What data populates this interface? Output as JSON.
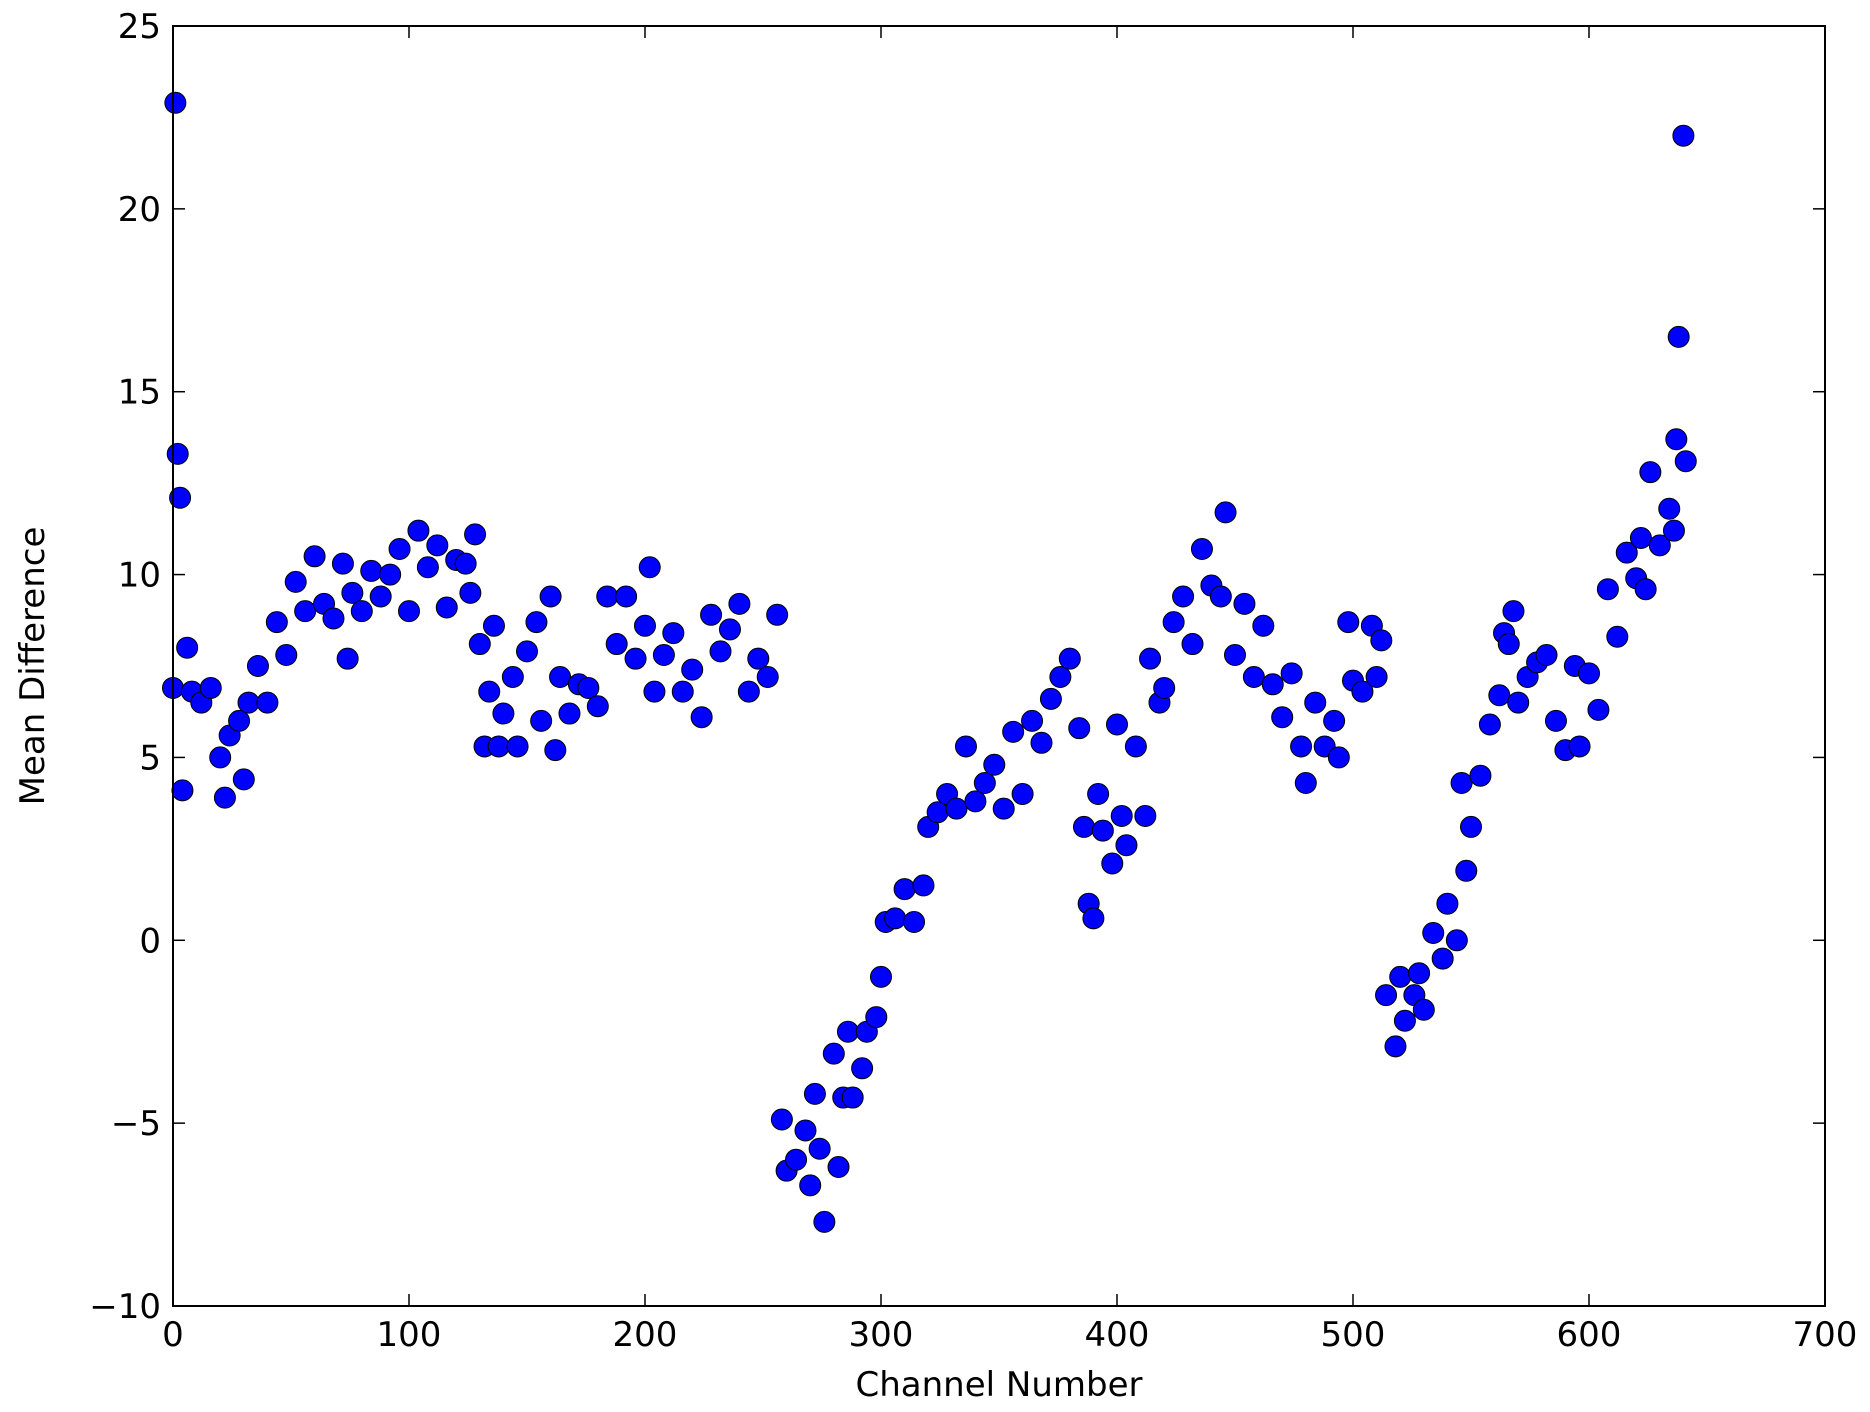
{
  "chart_data": {
    "type": "scatter",
    "x_label": "Channel Number",
    "y_label": "Mean Difference",
    "color": "#0000ff",
    "edge_color": "#000000",
    "xlim": [
      0,
      700
    ],
    "xticks": [
      0,
      100,
      200,
      300,
      400,
      500,
      600,
      700
    ],
    "ylim": [
      -10,
      25
    ],
    "yticks": [
      {
        "value": -10,
        "label": "−10"
      },
      {
        "value": -5,
        "label": "−5"
      },
      0,
      5,
      10,
      15,
      20,
      25
    ],
    "grid": false,
    "x": [
      0,
      1,
      2,
      3,
      4,
      6,
      8,
      12,
      16,
      20,
      22,
      24,
      28,
      30,
      32,
      36,
      40,
      44,
      48,
      52,
      56,
      60,
      64,
      68,
      72,
      74,
      76,
      80,
      84,
      88,
      92,
      96,
      100,
      104,
      108,
      112,
      116,
      120,
      124,
      126,
      128,
      130,
      132,
      134,
      136,
      138,
      140,
      144,
      146,
      150,
      154,
      156,
      160,
      162,
      164,
      168,
      172,
      176,
      180,
      184,
      188,
      192,
      196,
      200,
      202,
      204,
      208,
      212,
      216,
      220,
      224,
      228,
      232,
      236,
      240,
      244,
      248,
      252,
      256,
      258,
      260,
      264,
      268,
      270,
      272,
      274,
      276,
      280,
      282,
      284,
      286,
      288,
      292,
      294,
      298,
      300,
      302,
      306,
      310,
      314,
      318,
      320,
      324,
      328,
      332,
      336,
      340,
      344,
      348,
      352,
      356,
      360,
      364,
      368,
      372,
      376,
      380,
      384,
      386,
      388,
      390,
      392,
      394,
      398,
      400,
      402,
      404,
      408,
      412,
      414,
      418,
      420,
      424,
      428,
      432,
      436,
      440,
      444,
      446,
      450,
      454,
      458,
      462,
      466,
      470,
      474,
      478,
      480,
      484,
      488,
      492,
      494,
      498,
      500,
      504,
      508,
      510,
      512,
      514,
      518,
      520,
      522,
      526,
      528,
      530,
      534,
      538,
      540,
      544,
      546,
      548,
      550,
      554,
      558,
      562,
      564,
      566,
      568,
      570,
      574,
      578,
      582,
      586,
      590,
      594,
      596,
      600,
      604,
      608,
      612,
      616,
      620,
      622,
      624,
      626,
      630,
      634,
      636,
      637,
      638,
      640,
      641
    ],
    "y": [
      6.9,
      22.9,
      13.3,
      12.1,
      4.1,
      8.0,
      6.8,
      6.5,
      6.9,
      5.0,
      3.9,
      5.6,
      6.0,
      4.4,
      6.5,
      7.5,
      6.5,
      8.7,
      7.8,
      9.8,
      9.0,
      10.5,
      9.2,
      8.8,
      10.3,
      7.7,
      9.5,
      9.0,
      10.1,
      9.4,
      10.0,
      10.7,
      9.0,
      11.2,
      10.2,
      10.8,
      9.1,
      10.4,
      10.3,
      9.5,
      11.1,
      8.1,
      5.3,
      6.8,
      8.6,
      5.3,
      6.2,
      7.2,
      5.3,
      7.9,
      8.7,
      6.0,
      9.4,
      5.2,
      7.2,
      6.2,
      7.0,
      6.9,
      6.4,
      9.4,
      8.1,
      9.4,
      7.7,
      8.6,
      10.2,
      6.8,
      7.8,
      8.4,
      6.8,
      7.4,
      6.1,
      8.9,
      7.9,
      8.5,
      9.2,
      6.8,
      7.7,
      7.2,
      8.9,
      -4.9,
      -6.3,
      -6.0,
      -5.2,
      -6.7,
      -4.2,
      -5.7,
      -7.7,
      -3.1,
      -6.2,
      -4.3,
      -2.5,
      -4.3,
      -3.5,
      -2.5,
      -2.1,
      -1.0,
      0.5,
      0.6,
      1.4,
      0.5,
      1.5,
      3.1,
      3.5,
      4.0,
      3.6,
      5.3,
      3.8,
      4.3,
      4.8,
      3.6,
      5.7,
      4.0,
      6.0,
      5.4,
      6.6,
      7.2,
      7.7,
      5.8,
      3.1,
      1.0,
      0.6,
      4.0,
      3.0,
      2.1,
      5.9,
      3.4,
      2.6,
      5.3,
      3.4,
      7.7,
      6.5,
      6.9,
      8.7,
      9.4,
      8.1,
      10.7,
      9.7,
      9.4,
      11.7,
      7.8,
      9.2,
      7.2,
      8.6,
      7.0,
      6.1,
      7.3,
      5.3,
      4.3,
      6.5,
      5.3,
      6.0,
      5.0,
      8.7,
      7.1,
      6.8,
      8.6,
      7.2,
      8.2,
      -1.5,
      -2.9,
      -1.0,
      -2.2,
      -1.5,
      -0.9,
      -1.9,
      0.2,
      -0.5,
      1.0,
      0.0,
      4.3,
      1.9,
      3.1,
      4.5,
      5.9,
      6.7,
      8.4,
      8.1,
      9.0,
      6.5,
      7.2,
      7.6,
      7.8,
      6.0,
      5.2,
      7.5,
      5.3,
      7.3,
      6.3,
      9.6,
      8.3,
      10.6,
      9.9,
      11.0,
      9.6,
      12.8,
      10.8,
      11.8,
      11.2,
      13.7,
      16.5,
      22.0,
      13.1
    ]
  }
}
